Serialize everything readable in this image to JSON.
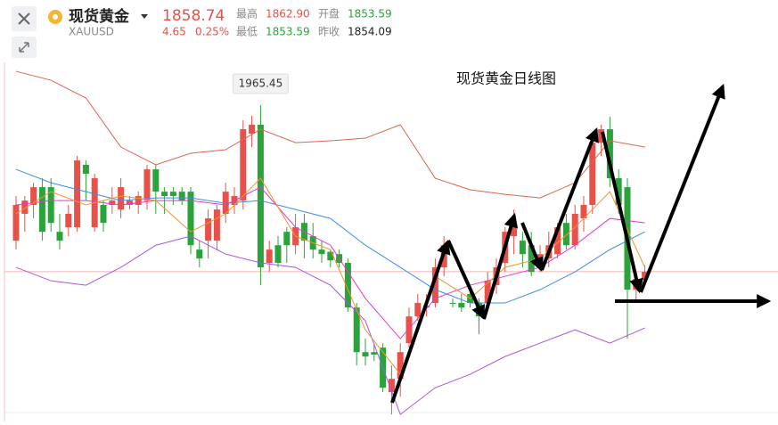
{
  "header": {
    "name": "现货黄金",
    "symbol": "XAUUSD",
    "price": "1858.74",
    "change": "4.65",
    "change_pct": "0.25%",
    "stats": [
      {
        "label": "最高",
        "value": "1862.90"
      },
      {
        "label": "开盘",
        "value": "1853.59"
      },
      {
        "label": "最低",
        "value": "1853.59"
      },
      {
        "label": "昨收",
        "value": "1854.09"
      }
    ]
  },
  "chart_data": {
    "type": "candlestick",
    "annotation": "现货黄金日线图",
    "up_color": "#e8514a",
    "down_color": "#2aa43a",
    "ylim": [
      1762.8,
      2032.8
    ],
    "open": [
      1878.6,
      1895.8,
      1901.5,
      1912.9,
      1912.9,
      1884.3,
      1887.2,
      1887.2,
      1927.2,
      1887.2,
      1901.5,
      1901.5,
      1898.6,
      1901.5,
      1901.5,
      1904.3,
      1924.3,
      1910.0,
      1910.0,
      1910.0,
      1910.0,
      1872.9,
      1878.6,
      1878.6,
      1895.8,
      1901.5,
      1904.3,
      1947.2,
      1952.9,
      1864.4,
      1875.7,
      1884.3,
      1875.7,
      1890.0,
      1881.5,
      1872.9,
      1871.5,
      1870.0,
      1864.4,
      1835.8,
      1807.2,
      1807.2,
      1810.1,
      1781.6,
      1790.1,
      1813.0,
      1830.1,
      1835.8,
      1838.7,
      1861.5,
      1838.7,
      1838.7,
      1844.4,
      1838.7,
      1838.7,
      1850.1,
      1864.4,
      1881.5,
      1878.6,
      1875.7,
      1861.5,
      1867.2,
      1870.0,
      1890.0,
      1875.7,
      1892.9,
      1901.5,
      1941.4,
      1950.0,
      1918.6,
      1912.9,
      1847.2,
      1853.59
    ],
    "high": [
      1907.2,
      1907.2,
      1915.7,
      1918.6,
      1918.6,
      1895.8,
      1901.5,
      1932.9,
      1930.0,
      1921.5,
      1904.3,
      1912.9,
      1918.6,
      1907.2,
      1910.0,
      1927.2,
      1927.2,
      1912.9,
      1912.9,
      1912.9,
      1912.9,
      1878.6,
      1898.6,
      1901.5,
      1915.7,
      1912.9,
      1955.8,
      1958.6,
      1965.45,
      1878.6,
      1881.5,
      1887.2,
      1895.8,
      1895.8,
      1890.0,
      1878.6,
      1872.9,
      1872.9,
      1867.2,
      1838.7,
      1815.8,
      1812.9,
      1812.9,
      1798.7,
      1812.9,
      1835.8,
      1844.4,
      1844.4,
      1867.2,
      1881.5,
      1841.6,
      1844.4,
      1847.3,
      1841.6,
      1858.6,
      1867.2,
      1887.2,
      1898.6,
      1884.3,
      1884.3,
      1875.7,
      1884.3,
      1890.0,
      1895.8,
      1901.5,
      1907.2,
      1947.2,
      1952.9,
      1958.0,
      1924.3,
      1918.6,
      1856.0,
      1862.9
    ],
    "low": [
      1872.9,
      1884.3,
      1893.0,
      1878.6,
      1884.3,
      1872.9,
      1881.5,
      1884.3,
      1904.3,
      1884.3,
      1884.3,
      1895.8,
      1892.9,
      1898.6,
      1895.8,
      1898.6,
      1895.8,
      1895.8,
      1901.5,
      1901.5,
      1870.0,
      1861.5,
      1867.2,
      1872.9,
      1890.0,
      1895.8,
      1898.6,
      1938.6,
      1850.1,
      1858.6,
      1861.5,
      1864.4,
      1870.0,
      1867.2,
      1867.2,
      1864.4,
      1861.5,
      1861.5,
      1833.0,
      1798.7,
      1798.7,
      1801.5,
      1781.6,
      1767.3,
      1778.7,
      1810.1,
      1827.2,
      1830.1,
      1835.8,
      1855.8,
      1835.8,
      1833.0,
      1835.8,
      1818.7,
      1835.8,
      1844.4,
      1858.6,
      1870.0,
      1861.5,
      1855.8,
      1858.6,
      1861.5,
      1867.2,
      1872.9,
      1872.9,
      1884.3,
      1895.8,
      1932.9,
      1912.9,
      1895.8,
      1815.8,
      1838.7,
      1853.59
    ],
    "close": [
      1901.5,
      1904.3,
      1912.9,
      1884.3,
      1890.0,
      1878.6,
      1895.8,
      1930.0,
      1921.5,
      1918.6,
      1890.0,
      1904.3,
      1912.9,
      1904.3,
      1907.2,
      1924.3,
      1910.0,
      1907.2,
      1907.2,
      1904.3,
      1875.7,
      1867.2,
      1892.9,
      1898.6,
      1910.0,
      1907.2,
      1950.0,
      1952.9,
      1861.5,
      1872.9,
      1864.4,
      1875.7,
      1887.2,
      1878.6,
      1872.9,
      1870.0,
      1866.0,
      1864.4,
      1835.8,
      1807.2,
      1804.4,
      1805.6,
      1784.4,
      1790.1,
      1807.2,
      1830.1,
      1838.7,
      1836.9,
      1861.5,
      1875.7,
      1838.1,
      1835.8,
      1838.7,
      1830.1,
      1853.0,
      1861.5,
      1884.3,
      1890.0,
      1870.0,
      1858.6,
      1870.0,
      1875.7,
      1887.2,
      1875.7,
      1895.8,
      1901.5,
      1941.4,
      1950.0,
      1918.6,
      1901.5,
      1847.2,
      1854.09,
      1858.74
    ],
    "overlay_x": [
      0,
      4,
      8,
      12,
      16,
      20,
      24,
      28,
      32,
      36,
      40,
      44,
      48,
      52,
      56,
      60,
      64,
      68,
      72
    ],
    "overlays": [
      {
        "color": "#d9674f",
        "values": [
          1987.1,
          1981.4,
          1970.0,
          1938.6,
          1927.2,
          1934.6,
          1936.9,
          1950.0,
          1941.4,
          1942.6,
          1944.3,
          1952.9,
          1918.6,
          1911.2,
          1908.3,
          1906.0,
          1915.7,
          1942.6,
          1938.6
        ]
      },
      {
        "color": "#3b8ee8",
        "values": [
          1924.3,
          1915.7,
          1910.0,
          1904.3,
          1906.0,
          1906.0,
          1902.6,
          1904.3,
          1898.6,
          1892.9,
          1875.7,
          1861.5,
          1847.2,
          1838.7,
          1838.7,
          1847.2,
          1858.6,
          1872.9,
          1884.3
        ]
      },
      {
        "color": "#a855e8",
        "values": [
          1861.5,
          1852.9,
          1850.1,
          1861.5,
          1875.7,
          1881.5,
          1870.0,
          1864.4,
          1861.5,
          1850.1,
          1827.2,
          1767.3,
          1784.4,
          1793.0,
          1804.4,
          1813.0,
          1821.5,
          1813.0,
          1822.7
        ]
      },
      {
        "color": "#e835d0",
        "values": [
          1901.5,
          1904.3,
          1904.3,
          1901.5,
          1904.3,
          1904.3,
          1901.5,
          1912.9,
          1887.2,
          1875.7,
          1841.6,
          1815.8,
          1841.6,
          1850.1,
          1855.8,
          1861.5,
          1875.7,
          1892.9,
          1890.0
        ]
      },
      {
        "color": "#f0962e",
        "values": [
          1895.8,
          1910.0,
          1901.5,
          1907.2,
          1904.3,
          1884.3,
          1895.8,
          1918.6,
          1881.5,
          1872.9,
          1821.5,
          1793.0,
          1855.8,
          1841.6,
          1861.5,
          1867.2,
          1887.2,
          1910.0,
          1861.5
        ]
      }
    ]
  }
}
